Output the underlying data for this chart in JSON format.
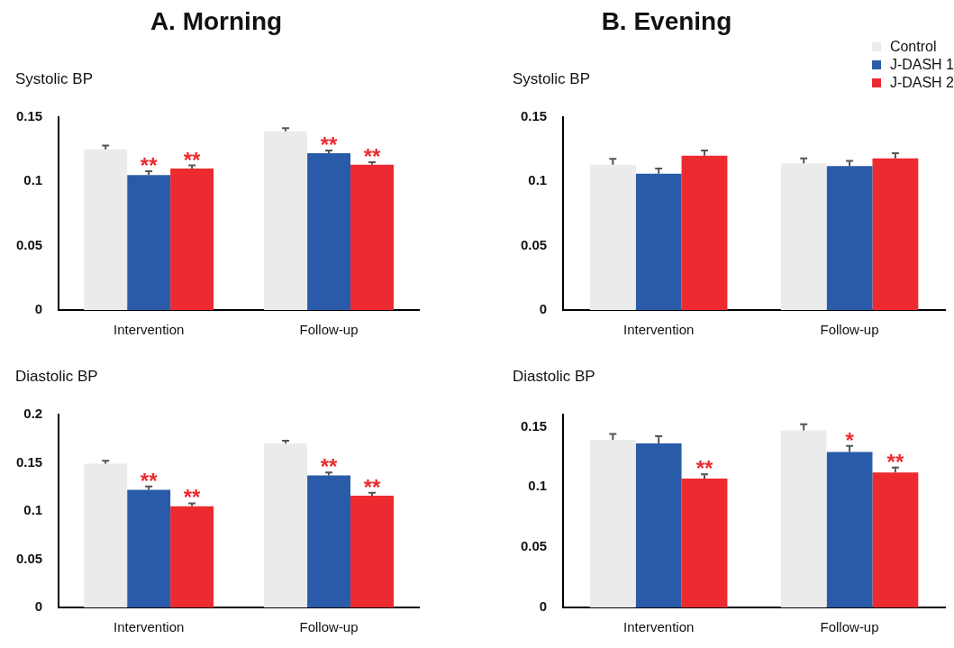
{
  "chart_data": [
    {
      "type": "bar",
      "title": "A. Morning",
      "ylabel": "Systolic BP",
      "categories": [
        "Intervention",
        "Follow-up"
      ],
      "ylim": [
        0,
        0.15
      ],
      "yticks": [
        0,
        0.05,
        0.1,
        0.15
      ],
      "grid": false,
      "legend": false,
      "series": [
        {
          "color": "#ebebeb",
          "values": [
            0.125,
            0.139
          ],
          "errors": [
            0.003,
            0.0025
          ]
        },
        {
          "color": "#2a5ba8",
          "values": [
            0.105,
            0.122
          ],
          "errors": [
            0.003,
            0.002
          ],
          "value_labels": [
            "**",
            "**"
          ]
        },
        {
          "color": "#ec2a2f",
          "values": [
            0.11,
            0.113
          ],
          "errors": [
            0.0025,
            0.002
          ],
          "value_labels": [
            "**",
            "**"
          ]
        }
      ]
    },
    {
      "type": "bar",
      "title": "B. Evening",
      "ylabel": "Systolic BP",
      "categories": [
        "Intervention",
        "Follow-up"
      ],
      "ylim": [
        0,
        0.15
      ],
      "yticks": [
        0,
        0.05,
        0.1,
        0.15
      ],
      "grid": false,
      "legend": "top right",
      "series": [
        {
          "name": "Control",
          "color": "#ebebeb",
          "values": [
            0.113,
            0.114
          ],
          "errors": [
            0.0045,
            0.004
          ]
        },
        {
          "name": "J-DASH 1",
          "color": "#2a5ba8",
          "values": [
            0.106,
            0.112
          ],
          "errors": [
            0.004,
            0.004
          ]
        },
        {
          "name": "J-DASH 2",
          "color": "#ec2a2f",
          "values": [
            0.12,
            0.118
          ],
          "errors": [
            0.004,
            0.004
          ]
        }
      ]
    },
    {
      "type": "bar",
      "ylabel": "Diastolic BP",
      "categories": [
        "Intervention",
        "Follow-up"
      ],
      "ylim": [
        0,
        0.2
      ],
      "yticks": [
        0,
        0.05,
        0.1,
        0.15,
        0.2
      ],
      "grid": false,
      "legend": false,
      "series": [
        {
          "color": "#ebebeb",
          "values": [
            0.149,
            0.17
          ],
          "errors": [
            0.003,
            0.003
          ]
        },
        {
          "color": "#2a5ba8",
          "values": [
            0.122,
            0.137
          ],
          "errors": [
            0.0035,
            0.003
          ],
          "value_labels": [
            "**",
            "**"
          ]
        },
        {
          "color": "#ec2a2f",
          "values": [
            0.105,
            0.116
          ],
          "errors": [
            0.003,
            0.003
          ],
          "value_labels": [
            "**",
            "**"
          ]
        }
      ]
    },
    {
      "type": "bar",
      "ylabel": "Diastolic BP",
      "categories": [
        "Intervention",
        "Follow-up"
      ],
      "ylim": [
        0,
        0.16
      ],
      "yticks": [
        0,
        0.05,
        0.1,
        0.15
      ],
      "grid": false,
      "legend": false,
      "series": [
        {
          "color": "#ebebeb",
          "values": [
            0.139,
            0.147
          ],
          "errors": [
            0.005,
            0.005
          ]
        },
        {
          "color": "#2a5ba8",
          "values": [
            0.136,
            0.129
          ],
          "errors": [
            0.006,
            0.005
          ],
          "value_labels": [
            null,
            "*"
          ]
        },
        {
          "color": "#ec2a2f",
          "values": [
            0.107,
            0.112
          ],
          "errors": [
            0.0035,
            0.004
          ],
          "value_labels": [
            "**",
            "**"
          ]
        }
      ]
    }
  ]
}
